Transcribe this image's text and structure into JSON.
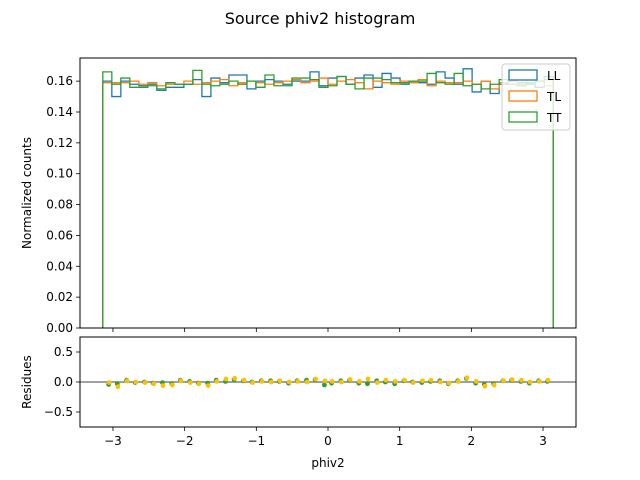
{
  "figure_title": "Source phiv2 histogram",
  "chart_data": [
    {
      "type": "step-histogram",
      "ylabel": "Normalized counts",
      "xlim": [
        -3.46,
        3.46
      ],
      "ylim": [
        0.0,
        0.175
      ],
      "xticks": [
        -3,
        -2,
        -1,
        0,
        1,
        2,
        3
      ],
      "yticks": [
        0.0,
        0.02,
        0.04,
        0.06,
        0.08,
        0.1,
        0.12,
        0.14,
        0.16
      ],
      "ytick_labels": [
        "0.00",
        "0.02",
        "0.04",
        "0.06",
        "0.08",
        "0.10",
        "0.12",
        "0.14",
        "0.16"
      ],
      "bin_range": [
        -3.1416,
        3.1416
      ],
      "legend_position": "upper right",
      "series": [
        {
          "name": "LL",
          "color": "#1f77b4",
          "values": [
            0.16,
            0.15,
            0.16,
            0.158,
            0.157,
            0.158,
            0.154,
            0.156,
            0.156,
            0.158,
            0.161,
            0.15,
            0.162,
            0.159,
            0.164,
            0.164,
            0.155,
            0.16,
            0.161,
            0.16,
            0.158,
            0.16,
            0.16,
            0.166,
            0.157,
            0.162,
            0.163,
            0.158,
            0.162,
            0.164,
            0.156,
            0.165,
            0.162,
            0.158,
            0.16,
            0.159,
            0.158,
            0.166,
            0.162,
            0.158,
            0.168,
            0.153,
            0.16,
            0.152,
            0.158,
            0.16,
            0.159,
            0.158,
            0.156,
            0.161
          ]
        },
        {
          "name": "TL",
          "color": "#ff7f0e",
          "values": [
            0.159,
            0.159,
            0.159,
            0.16,
            0.158,
            0.159,
            0.157,
            0.158,
            0.158,
            0.16,
            0.158,
            0.159,
            0.16,
            0.161,
            0.157,
            0.159,
            0.16,
            0.159,
            0.158,
            0.159,
            0.16,
            0.161,
            0.159,
            0.16,
            0.162,
            0.158,
            0.16,
            0.161,
            0.159,
            0.155,
            0.16,
            0.159,
            0.158,
            0.16,
            0.159,
            0.161,
            0.157,
            0.16,
            0.159,
            0.159,
            0.16,
            0.158,
            0.16,
            0.155,
            0.159,
            0.16,
            0.158,
            0.159,
            0.16,
            0.157
          ]
        },
        {
          "name": "TT",
          "color": "#2ca02c",
          "values": [
            0.166,
            0.158,
            0.162,
            0.156,
            0.156,
            0.157,
            0.155,
            0.159,
            0.158,
            0.158,
            0.167,
            0.158,
            0.157,
            0.158,
            0.16,
            0.158,
            0.16,
            0.156,
            0.164,
            0.157,
            0.157,
            0.162,
            0.162,
            0.161,
            0.156,
            0.157,
            0.163,
            0.158,
            0.155,
            0.162,
            0.162,
            0.161,
            0.159,
            0.159,
            0.16,
            0.16,
            0.165,
            0.159,
            0.158,
            0.165,
            0.157,
            0.158,
            0.155,
            0.158,
            0.161,
            0.158,
            0.157,
            0.159,
            0.16,
            0.163
          ]
        }
      ]
    },
    {
      "type": "scatter",
      "xlabel": "phiv2",
      "ylabel": "Residues",
      "xlim": [
        -3.46,
        3.46
      ],
      "ylim": [
        -0.75,
        0.75
      ],
      "xticks": [
        -3,
        -2,
        -1,
        0,
        1,
        2,
        3
      ],
      "yticks": [
        -0.5,
        0.0,
        0.5
      ],
      "ytick_labels": [
        "−0.5",
        "0.0",
        "0.5"
      ],
      "reference_line": 0.0,
      "point_colors": [
        "#2ca02c",
        "#ffc000"
      ],
      "x": [
        -3.06,
        -2.94,
        -2.81,
        -2.69,
        -2.56,
        -2.44,
        -2.31,
        -2.18,
        -2.06,
        -1.93,
        -1.81,
        -1.68,
        -1.56,
        -1.43,
        -1.31,
        -1.18,
        -1.06,
        -0.93,
        -0.8,
        -0.68,
        -0.55,
        -0.43,
        -0.3,
        -0.18,
        -0.05,
        0.05,
        0.18,
        0.3,
        0.43,
        0.55,
        0.68,
        0.8,
        0.93,
        1.06,
        1.18,
        1.31,
        1.43,
        1.56,
        1.68,
        1.81,
        1.93,
        2.06,
        2.18,
        2.31,
        2.44,
        2.56,
        2.69,
        2.81,
        2.94,
        3.06
      ],
      "residues_a": [
        -0.04,
        -0.03,
        0.03,
        -0.01,
        0.0,
        -0.02,
        -0.01,
        -0.03,
        0.03,
        0.01,
        -0.02,
        -0.02,
        0.03,
        0.01,
        0.04,
        0.02,
        0.0,
        0.02,
        0.02,
        0.01,
        -0.02,
        0.02,
        0.03,
        0.04,
        -0.05,
        -0.02,
        0.02,
        0.03,
        -0.02,
        -0.03,
        0.02,
        0.0,
        -0.03,
        0.02,
        0.0,
        -0.01,
        0.01,
        0.02,
        -0.03,
        0.02,
        0.06,
        -0.02,
        -0.04,
        -0.03,
        0.02,
        0.03,
        0.01,
        -0.02,
        0.02,
        0.01
      ],
      "residues_b": [
        -0.01,
        -0.08,
        0.02,
        0.0,
        -0.01,
        -0.03,
        -0.06,
        -0.05,
        0.02,
        -0.01,
        -0.03,
        -0.06,
        0.01,
        0.05,
        0.06,
        0.03,
        -0.01,
        0.01,
        0.0,
        0.02,
        0.0,
        0.01,
        0.0,
        0.05,
        0.02,
        0.01,
        0.0,
        0.04,
        0.01,
        0.05,
        -0.01,
        0.03,
        0.01,
        0.03,
        -0.01,
        0.02,
        0.03,
        0.0,
        -0.02,
        0.01,
        0.07,
        0.01,
        -0.07,
        -0.05,
        0.02,
        0.04,
        0.03,
        0.0,
        0.01,
        0.03
      ]
    }
  ]
}
